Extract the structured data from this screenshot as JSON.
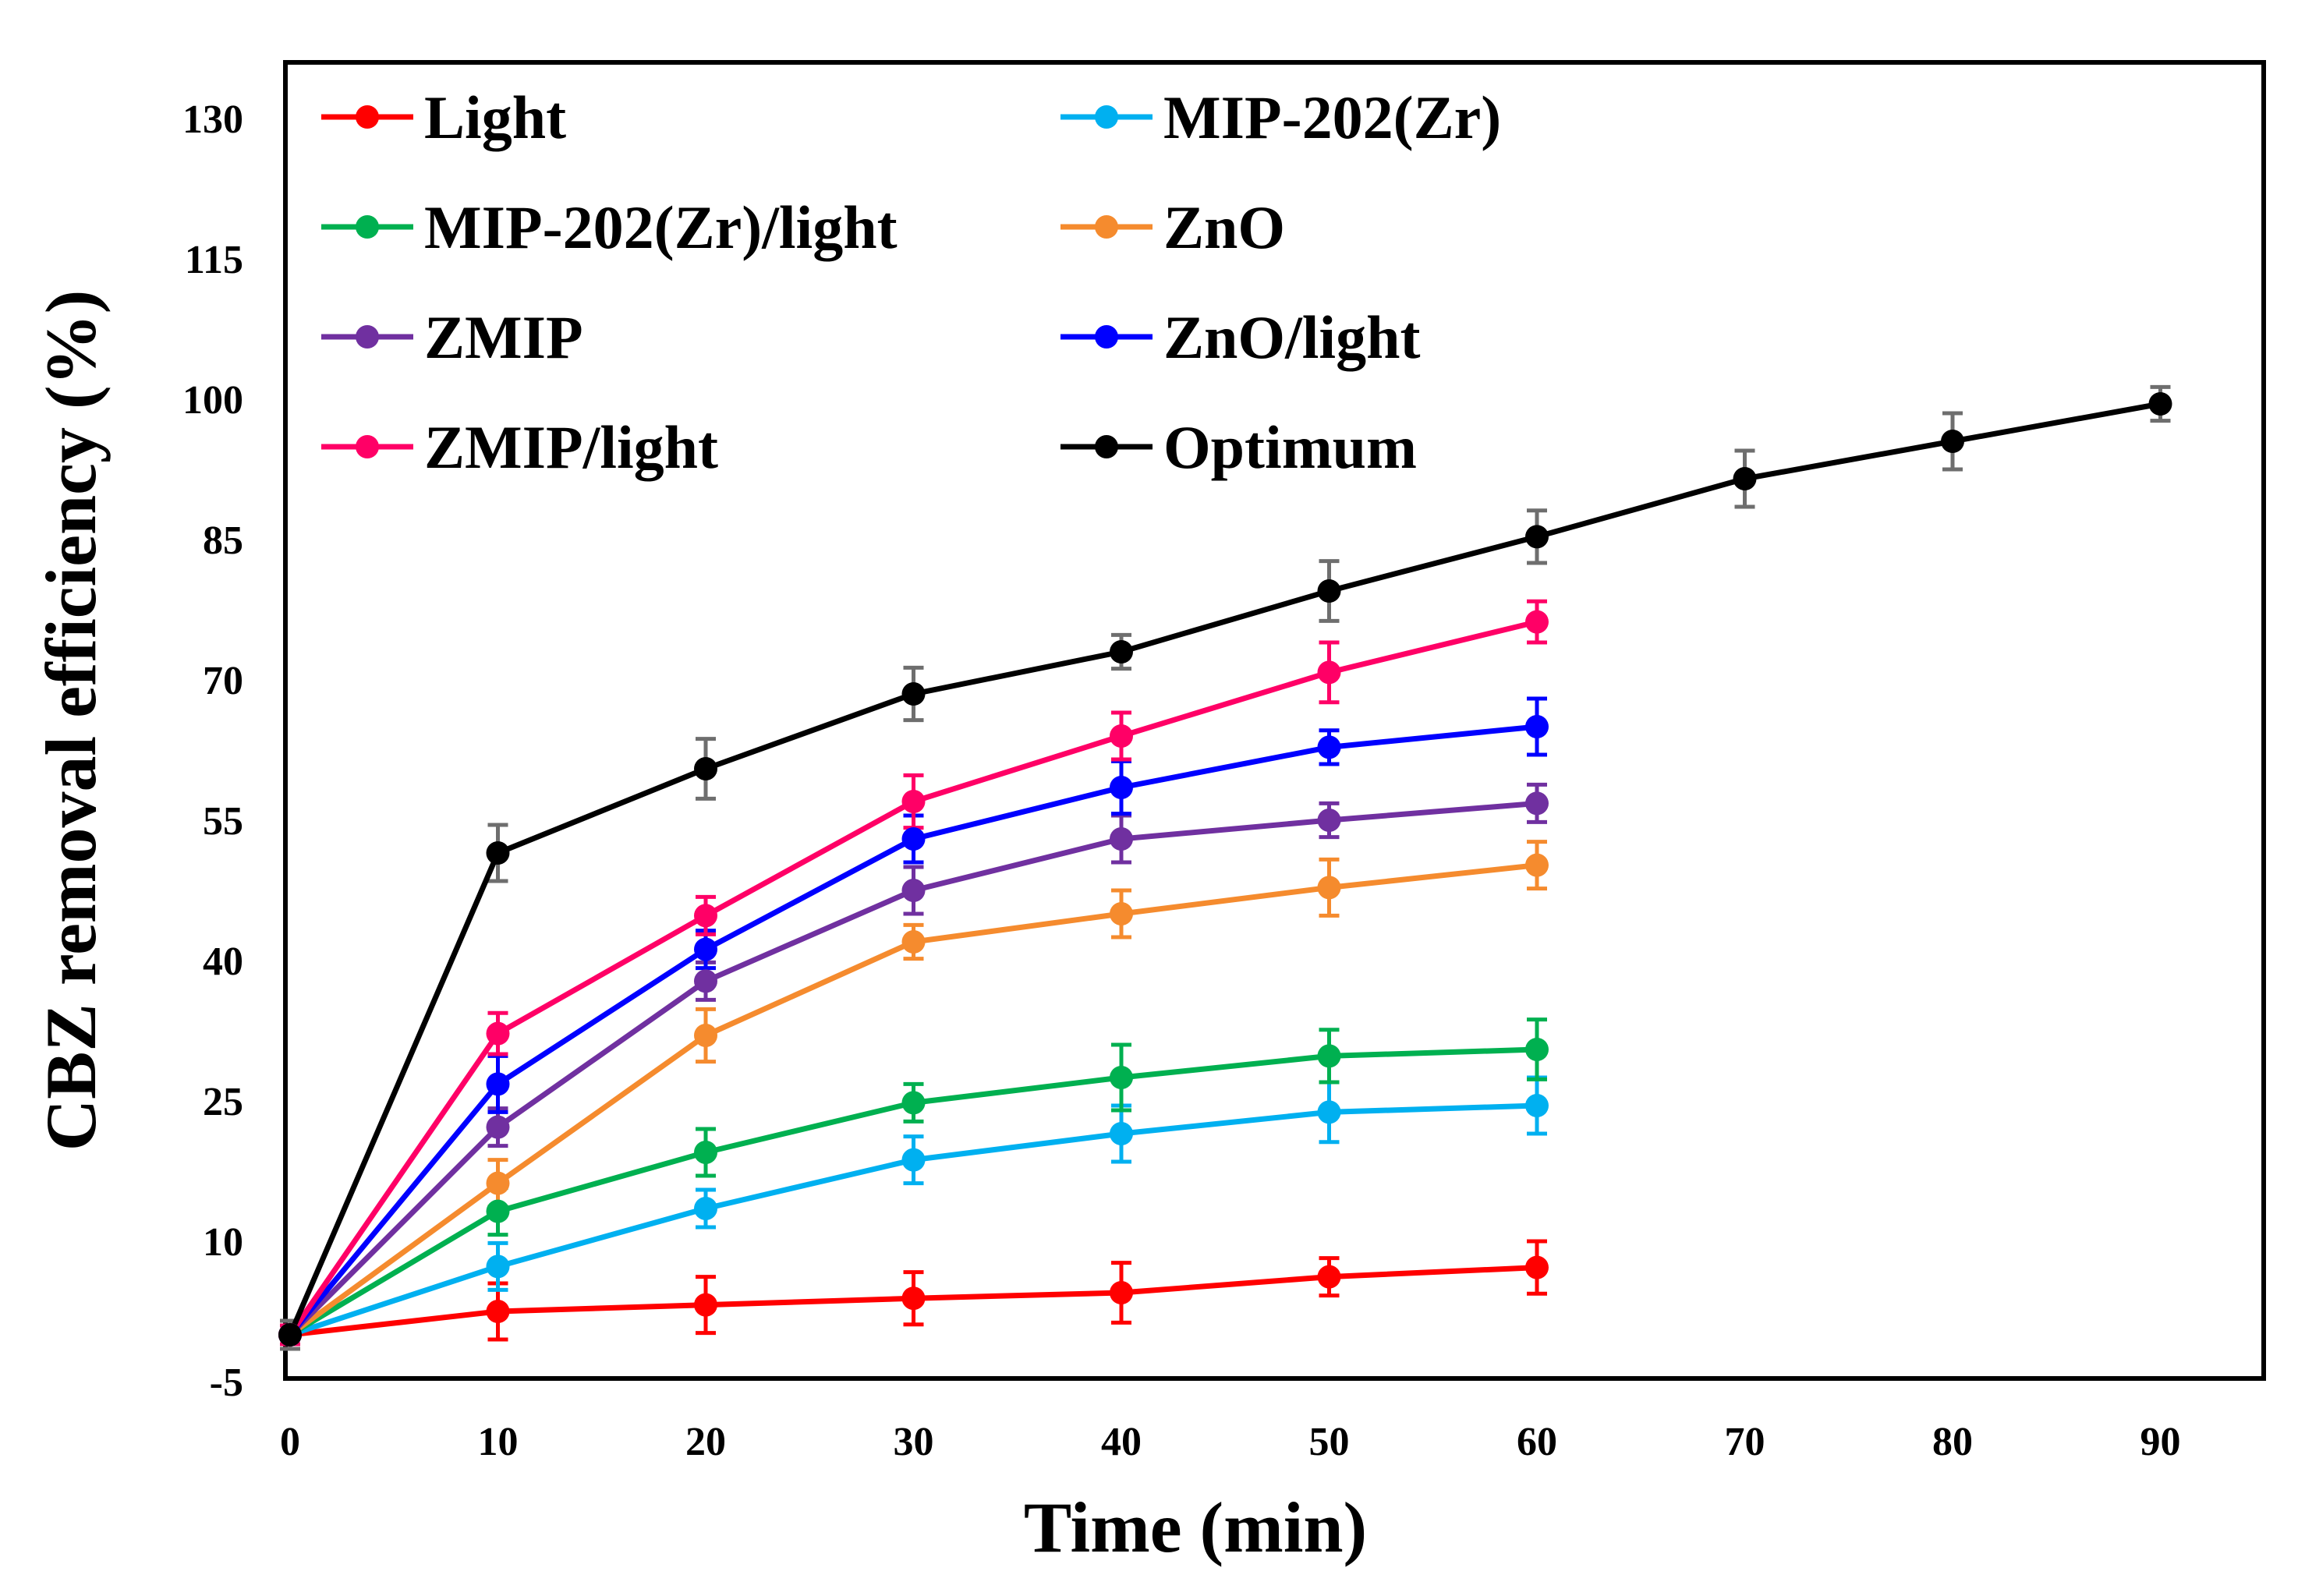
{
  "chart_data": {
    "type": "line",
    "title": "",
    "xlabel": "Time (min)",
    "ylabel": "CBZ removal efficiency (%)",
    "xlim": [
      0,
      95
    ],
    "ylim": [
      -5,
      135
    ],
    "xticks": [
      0,
      10,
      20,
      30,
      40,
      50,
      60,
      70,
      80,
      90
    ],
    "yticks": [
      -5,
      10,
      25,
      40,
      55,
      70,
      85,
      100,
      115,
      130
    ],
    "legend_position": "top-left",
    "grid": false,
    "series": [
      {
        "name": "Light",
        "color": "#ff0000",
        "x": [
          0,
          10,
          20,
          30,
          40,
          50,
          60
        ],
        "values": [
          0,
          2.5,
          3.2,
          3.9,
          4.5,
          6.2,
          7.2
        ],
        "errors": [
          1.5,
          3.0,
          3.0,
          2.8,
          3.2,
          2.0,
          2.8
        ]
      },
      {
        "name": "MIP-202(Zr)",
        "color": "#00b0f0",
        "x": [
          0,
          10,
          20,
          30,
          40,
          50,
          60
        ],
        "values": [
          0,
          7.3,
          13.5,
          18.7,
          21.5,
          23.8,
          24.5
        ],
        "errors": [
          1.0,
          2.5,
          2.0,
          2.5,
          3.0,
          3.2,
          3.0
        ]
      },
      {
        "name": "MIP-202(Zr)/light",
        "color": "#00b050",
        "x": [
          0,
          10,
          20,
          30,
          40,
          50,
          60
        ],
        "values": [
          0,
          13.2,
          19.5,
          24.8,
          27.5,
          29.8,
          30.5
        ],
        "errors": [
          1.0,
          2.5,
          2.5,
          2.0,
          3.5,
          2.8,
          3.2
        ]
      },
      {
        "name": "ZnO",
        "color": "#f58b2e",
        "x": [
          0,
          10,
          20,
          30,
          40,
          50,
          60
        ],
        "values": [
          0,
          16.2,
          32.0,
          42.0,
          45.0,
          47.8,
          50.2
        ],
        "errors": [
          1.0,
          2.5,
          2.8,
          1.8,
          2.5,
          3.0,
          2.5
        ]
      },
      {
        "name": "ZMIP",
        "color": "#7030a0",
        "x": [
          0,
          10,
          20,
          30,
          40,
          50,
          60
        ],
        "values": [
          0,
          22.2,
          37.8,
          47.5,
          53.0,
          55.0,
          56.8
        ],
        "errors": [
          1.0,
          2.0,
          2.0,
          2.5,
          2.5,
          1.8,
          2.0
        ]
      },
      {
        "name": "ZnO/light",
        "color": "#0000ff",
        "x": [
          0,
          10,
          20,
          30,
          40,
          50,
          60
        ],
        "values": [
          0,
          26.8,
          41.2,
          53.0,
          58.5,
          62.8,
          65.0
        ],
        "errors": [
          1.0,
          3.0,
          2.0,
          2.5,
          2.8,
          1.8,
          3.0
        ]
      },
      {
        "name": "ZMIP/light",
        "color": "#ff0066",
        "x": [
          0,
          10,
          20,
          30,
          40,
          50,
          60
        ],
        "values": [
          0,
          32.2,
          44.8,
          57.0,
          64.0,
          70.8,
          76.2
        ],
        "errors": [
          1.0,
          2.2,
          2.0,
          2.8,
          2.5,
          3.2,
          2.2
        ]
      },
      {
        "name": "Optimum",
        "color": "#000000",
        "x": [
          0,
          10,
          20,
          30,
          40,
          50,
          60,
          70,
          80,
          90
        ],
        "values": [
          0,
          51.5,
          60.5,
          68.5,
          73.0,
          79.5,
          85.3,
          91.5,
          95.5,
          99.5
        ],
        "errors": [
          1.5,
          3.0,
          3.2,
          2.8,
          1.8,
          3.2,
          2.8,
          3.0,
          3.0,
          1.8
        ]
      }
    ]
  }
}
